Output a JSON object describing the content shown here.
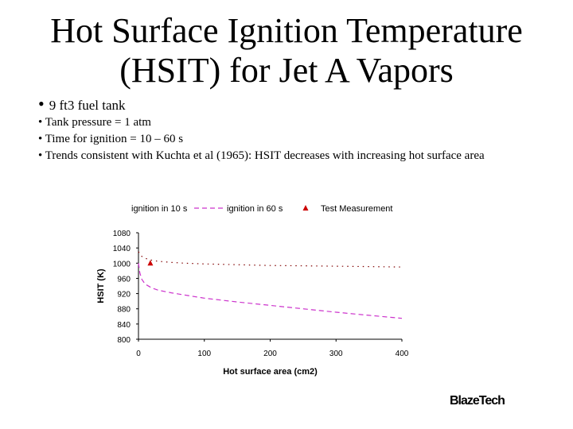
{
  "slide": {
    "title_line1": "Hot Surface Ignition Temperature",
    "title_line2": "(HSIT) for Jet A Vapors",
    "bullet_main": "9 ft3 fuel tank",
    "bullets": [
      "• Tank pressure = 1 atm",
      "• Time for ignition = 10 – 60 s",
      "• Trends consistent with Kuchta et al (1965): HSIT decreases with increasing hot surface area"
    ],
    "logo": "BlazeTech"
  },
  "chart_data": {
    "type": "line",
    "xlabel": "Hot surface area (cm2)",
    "ylabel": "HSIT (K)",
    "xlim": [
      0,
      400
    ],
    "ylim": [
      800,
      1080
    ],
    "xticks": [
      0,
      100,
      200,
      300,
      400
    ],
    "yticks": [
      800,
      840,
      880,
      920,
      960,
      1000,
      1040,
      1080
    ],
    "legend_position": "top",
    "series": [
      {
        "name": "ignition in 10 s",
        "style": "dotted",
        "color": "#800000",
        "x": [
          0,
          5,
          10,
          20,
          30,
          50,
          70,
          100,
          150,
          200,
          250,
          300,
          350,
          400
        ],
        "y": [
          1030,
          1018,
          1013,
          1008,
          1005,
          1002,
          1000,
          998,
          996,
          994,
          993,
          992,
          991,
          990
        ]
      },
      {
        "name": "ignition in 60 s",
        "style": "dashed",
        "color": "#cc33cc",
        "x": [
          0,
          2,
          5,
          10,
          20,
          30,
          50,
          75,
          100,
          150,
          200,
          250,
          300,
          350,
          400
        ],
        "y": [
          1000,
          975,
          958,
          945,
          935,
          929,
          922,
          915,
          908,
          898,
          889,
          880,
          871,
          863,
          855
        ]
      },
      {
        "name": "Test Measurement",
        "style": "marker",
        "color": "#cc0000",
        "x": [
          18
        ],
        "y": [
          1000
        ]
      }
    ]
  }
}
